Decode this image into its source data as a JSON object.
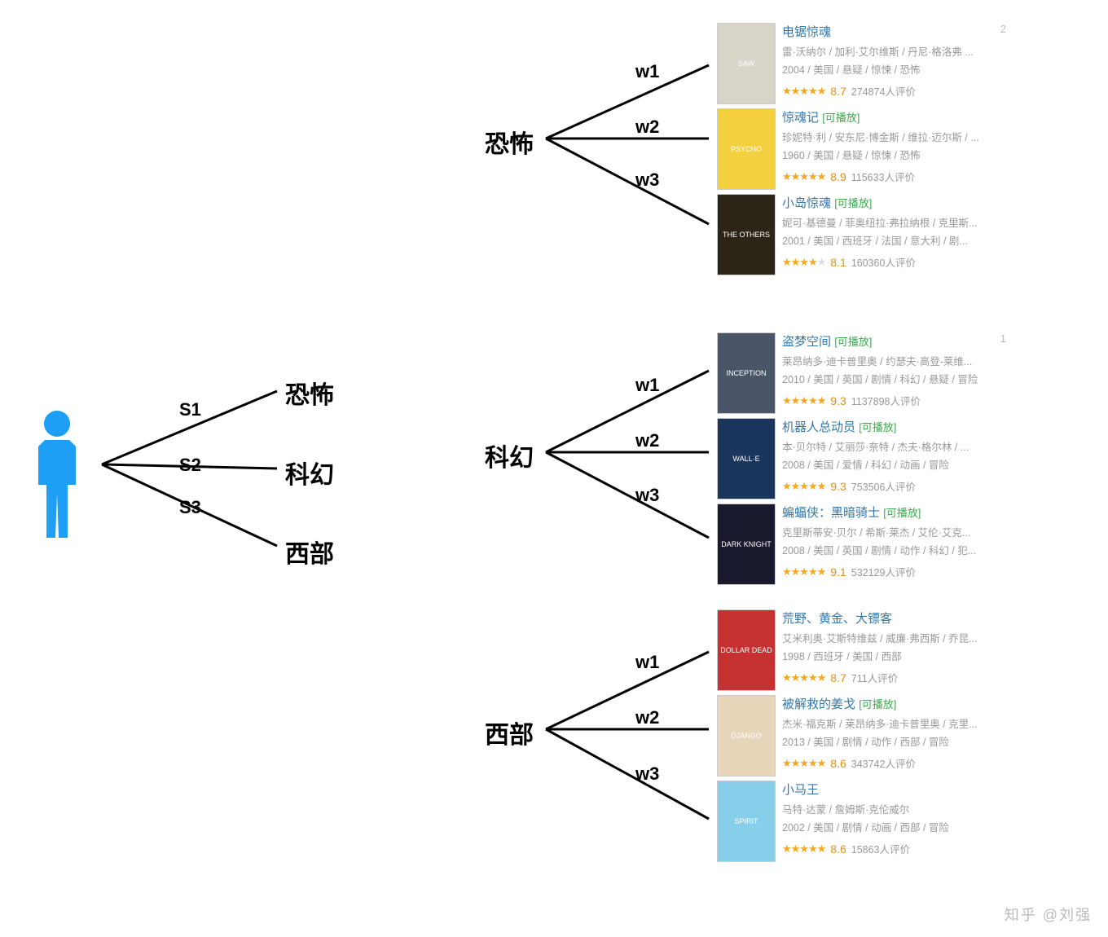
{
  "colors": {
    "person": "#1e9ef4",
    "line": "#000000",
    "title": "#3377aa",
    "play": "#3ba94d",
    "star": "#f5a623",
    "score": "#e09015",
    "meta": "#999999"
  },
  "user_tree": {
    "branches": [
      {
        "label": "S1",
        "target": "恐怖"
      },
      {
        "label": "S2",
        "target": "科幻"
      },
      {
        "label": "S3",
        "target": "西部"
      }
    ]
  },
  "genre_groups": [
    {
      "name": "恐怖",
      "weights": [
        "w1",
        "w2",
        "w3"
      ],
      "movies": [
        {
          "title": "电锯惊魂",
          "playable": false,
          "rank": "2",
          "cast": "雷·沃纳尔 / 加利·艾尔维斯 / 丹尼·格洛弗 ...",
          "meta": "2004 / 美国 / 悬疑 / 惊悚 / 恐怖",
          "stars": 4.5,
          "score": "8.7",
          "count": "274874人评价",
          "poster_bg": "#d8d4c8",
          "poster_text": "SAW"
        },
        {
          "title": "惊魂记",
          "playable": true,
          "cast": "珍妮特·利 / 安东尼·博金斯 / 维拉·迈尔斯 / ...",
          "meta": "1960 / 美国 / 悬疑 / 惊悚 / 恐怖",
          "stars": 4.5,
          "score": "8.9",
          "count": "115633人评价",
          "poster_bg": "#f4d03f",
          "poster_text": "PSYCHO"
        },
        {
          "title": "小岛惊魂",
          "playable": true,
          "cast": "妮可·基德曼 / 菲奥纽拉·弗拉纳根 / 克里斯...",
          "meta": "2001 / 美国 / 西班牙 / 法国 / 意大利 / 剧...",
          "stars": 4.0,
          "score": "8.1",
          "count": "160360人评价",
          "poster_bg": "#2c2416",
          "poster_text": "THE OTHERS"
        }
      ]
    },
    {
      "name": "科幻",
      "weights": [
        "w1",
        "w2",
        "w3"
      ],
      "movies": [
        {
          "title": "盗梦空间",
          "playable": true,
          "rank": "1",
          "cast": "莱昂纳多·迪卡普里奥 / 约瑟夫·高登-莱维...",
          "meta": "2010 / 美国 / 英国 / 剧情 / 科幻 / 悬疑 / 冒险",
          "stars": 5.0,
          "score": "9.3",
          "count": "1137898人评价",
          "poster_bg": "#4a5568",
          "poster_text": "INCEPTION"
        },
        {
          "title": "机器人总动员",
          "playable": true,
          "cast": "本·贝尔特 / 艾丽莎·奈特 / 杰夫·格尔林 / ...",
          "meta": "2008 / 美国 / 爱情 / 科幻 / 动画 / 冒险",
          "stars": 5.0,
          "score": "9.3",
          "count": "753506人评价",
          "poster_bg": "#1a365d",
          "poster_text": "WALL·E"
        },
        {
          "title": "蝙蝠侠：黑暗骑士",
          "playable": true,
          "cast": "克里斯蒂安·贝尔 / 希斯·莱杰 / 艾伦·艾克...",
          "meta": "2008 / 美国 / 英国 / 剧情 / 动作 / 科幻 / 犯...",
          "stars": 4.5,
          "score": "9.1",
          "count": "532129人评价",
          "poster_bg": "#1a1a2e",
          "poster_text": "DARK KNIGHT"
        }
      ]
    },
    {
      "name": "西部",
      "weights": [
        "w1",
        "w2",
        "w3"
      ],
      "movies": [
        {
          "title": "荒野、黄金、大镖客",
          "playable": false,
          "cast": "艾米利奥·艾斯特维兹 / 威廉·弗西斯 / 乔昆...",
          "meta": "1998 / 西班牙 / 美国 / 西部",
          "stars": 4.5,
          "score": "8.7",
          "count": "711人评价",
          "poster_bg": "#c53030",
          "poster_text": "DOLLAR DEAD"
        },
        {
          "title": "被解救的姜戈",
          "playable": true,
          "cast": "杰米·福克斯 / 莱昂纳多·迪卡普里奥 / 克里...",
          "meta": "2013 / 美国 / 剧情 / 动作 / 西部 / 冒险",
          "stars": 4.5,
          "score": "8.6",
          "count": "343742人评价",
          "poster_bg": "#e6d5b8",
          "poster_text": "DJANGO"
        },
        {
          "title": "小马王",
          "playable": false,
          "cast": "马特·达蒙 / 詹姆斯·克伦威尔",
          "meta": "2002 / 美国 / 剧情 / 动画 / 西部 / 冒险",
          "stars": 4.5,
          "score": "8.6",
          "count": "15863人评价",
          "poster_bg": "#87ceeb",
          "poster_text": "SPIRIT"
        }
      ]
    }
  ],
  "watermark": "知乎 @刘强"
}
